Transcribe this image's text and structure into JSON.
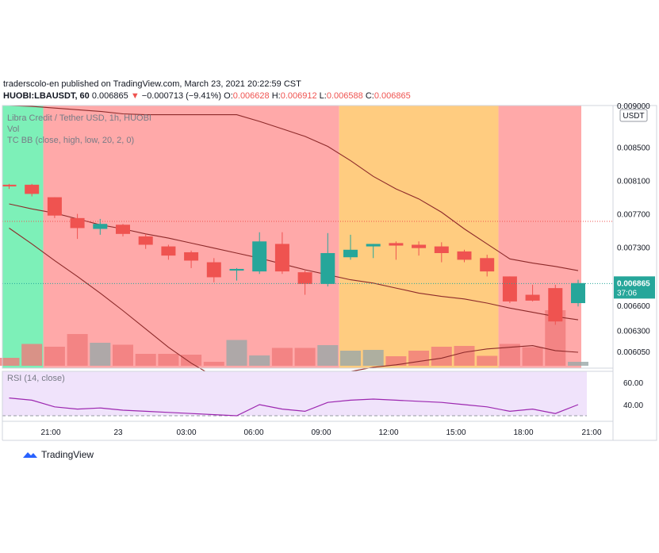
{
  "header": {
    "publish_line": "traderscolo-en published on TradingView.com, March 23, 2021 20:22:59 CST",
    "symbol": "HUOBI:LBAUSDT, 60",
    "last": "0.006865",
    "change_arrow": "▼",
    "change": "−0.000713 (−9.41%)",
    "o_label": "O:",
    "o_val": "0.006628",
    "h_label": "H:",
    "h_val": "0.006912",
    "l_label": "L:",
    "l_val": "0.006588",
    "c_label": "C:",
    "c_val": "0.006865"
  },
  "legend": {
    "title": "Libra Credit / Tether USD, 1h, HUOBI",
    "vol": "Vol",
    "bb": "TC BB (close, high, low, 20, 2, 0)",
    "rsi": "RSI (14, close)"
  },
  "price_axis": {
    "currency_badge": "USDT",
    "last_price_badge": "0.006865",
    "countdown_badge": "37:06"
  },
  "watermark": "TradingView",
  "colors": {
    "up": "#26a69a",
    "down": "#ef5350",
    "bg_green": "#7df0b8",
    "bg_red": "#ffa9a9",
    "bg_orange": "#ffcc80",
    "bb_line": "#8d2a2a",
    "rsi_line": "#9c27b0",
    "rsi_band": "#f0e3fb"
  },
  "chart_data": {
    "type": "candlestick",
    "title": "Libra Credit / Tether USD, 1h, HUOBI",
    "ylim": [
      0.00585,
      0.009
    ],
    "y_ticks": [
      "0.009000",
      "0.008500",
      "0.008100",
      "0.007700",
      "0.007300",
      "0.006600",
      "0.006300",
      "0.006050"
    ],
    "x_ticks": [
      "21:00",
      "23",
      "03:00",
      "06:00",
      "09:00",
      "12:00",
      "15:00",
      "18:00",
      "21:00"
    ],
    "candles": [
      {
        "o": 0.00805,
        "h": 0.00806,
        "l": 0.008,
        "c": 0.00803
      },
      {
        "o": 0.00805,
        "h": 0.00806,
        "l": 0.00791,
        "c": 0.00794
      },
      {
        "o": 0.0079,
        "h": 0.0079,
        "l": 0.00765,
        "c": 0.00768
      },
      {
        "o": 0.00765,
        "h": 0.0077,
        "l": 0.0074,
        "c": 0.00753
      },
      {
        "o": 0.00752,
        "h": 0.00764,
        "l": 0.00745,
        "c": 0.00758
      },
      {
        "o": 0.00757,
        "h": 0.00758,
        "l": 0.00743,
        "c": 0.00746
      },
      {
        "o": 0.00743,
        "h": 0.00746,
        "l": 0.00728,
        "c": 0.00733
      },
      {
        "o": 0.00731,
        "h": 0.00733,
        "l": 0.00715,
        "c": 0.0072
      },
      {
        "o": 0.00724,
        "h": 0.00726,
        "l": 0.00705,
        "c": 0.00714
      },
      {
        "o": 0.00712,
        "h": 0.00717,
        "l": 0.00688,
        "c": 0.00694
      },
      {
        "o": 0.00702,
        "h": 0.00705,
        "l": 0.0069,
        "c": 0.00704
      },
      {
        "o": 0.00701,
        "h": 0.00748,
        "l": 0.00698,
        "c": 0.00737
      },
      {
        "o": 0.00734,
        "h": 0.00748,
        "l": 0.00698,
        "c": 0.00701
      },
      {
        "o": 0.007,
        "h": 0.00702,
        "l": 0.00673,
        "c": 0.00686
      },
      {
        "o": 0.00686,
        "h": 0.00747,
        "l": 0.00683,
        "c": 0.00723
      },
      {
        "o": 0.00718,
        "h": 0.00745,
        "l": 0.00715,
        "c": 0.00727
      },
      {
        "o": 0.00731,
        "h": 0.00734,
        "l": 0.00717,
        "c": 0.00734
      },
      {
        "o": 0.00735,
        "h": 0.00737,
        "l": 0.00715,
        "c": 0.00732
      },
      {
        "o": 0.00733,
        "h": 0.00737,
        "l": 0.0072,
        "c": 0.00729
      },
      {
        "o": 0.00731,
        "h": 0.00736,
        "l": 0.00712,
        "c": 0.00723
      },
      {
        "o": 0.00725,
        "h": 0.00727,
        "l": 0.00712,
        "c": 0.00715
      },
      {
        "o": 0.00717,
        "h": 0.00721,
        "l": 0.00695,
        "c": 0.00701
      },
      {
        "o": 0.00695,
        "h": 0.00695,
        "l": 0.00663,
        "c": 0.00665
      },
      {
        "o": 0.00673,
        "h": 0.00685,
        "l": 0.00665,
        "c": 0.00666
      },
      {
        "o": 0.00681,
        "h": 0.00685,
        "l": 0.00637,
        "c": 0.00641
      },
      {
        "o": 0.00663,
        "h": 0.00691,
        "l": 0.00659,
        "c": 0.00687
      }
    ],
    "volume": [
      0.2,
      0.55,
      0.48,
      0.8,
      0.58,
      0.53,
      0.3,
      0.3,
      0.28,
      0.1,
      0.65,
      0.26,
      0.45,
      0.45,
      0.52,
      0.38,
      0.4,
      0.24,
      0.38,
      0.48,
      0.5,
      0.25,
      0.55,
      0.47,
      1.4,
      0.1
    ],
    "bb_upper": [
      0.009,
      0.00899,
      0.00897,
      0.00895,
      0.00893,
      0.0089,
      0.00889,
      0.00889,
      0.00889,
      0.00889,
      0.00889,
      0.00881,
      0.00872,
      0.00863,
      0.00851,
      0.00834,
      0.00815,
      0.008,
      0.00788,
      0.00772,
      0.00752,
      0.00734,
      0.00716,
      0.00711,
      0.00707,
      0.00702
    ],
    "bb_basis": [
      0.00782,
      0.00776,
      0.00771,
      0.00764,
      0.00757,
      0.00752,
      0.00746,
      0.00741,
      0.00735,
      0.00729,
      0.00723,
      0.00717,
      0.0071,
      0.00703,
      0.00697,
      0.00691,
      0.00687,
      0.00681,
      0.00675,
      0.00671,
      0.00668,
      0.00663,
      0.00657,
      0.00652,
      0.00647,
      0.00643
    ],
    "bb_lower": [
      0.00753,
      0.00734,
      0.00714,
      0.00695,
      0.00675,
      0.00654,
      0.00632,
      0.0061,
      0.00591,
      0.00575,
      0.00568,
      0.00571,
      0.00574,
      0.00574,
      0.00577,
      0.00581,
      0.00586,
      0.00589,
      0.00593,
      0.00597,
      0.00604,
      0.00608,
      0.0061,
      0.00612,
      0.00606,
      0.00604
    ],
    "rsi_ylim": [
      25,
      70
    ],
    "rsi_ticks": [
      60,
      40
    ],
    "rsi": [
      46,
      44,
      38,
      36,
      37,
      35,
      34,
      33,
      32,
      31,
      30,
      40,
      36,
      34,
      42,
      44,
      45,
      44,
      43,
      42,
      40,
      38,
      34,
      36,
      32,
      40
    ],
    "background_zones": [
      {
        "from": 0,
        "to": 2,
        "color": "green"
      },
      {
        "from": 2,
        "to": 15,
        "color": "red"
      },
      {
        "from": 15,
        "to": 22,
        "color": "orange"
      },
      {
        "from": 22,
        "to": 26,
        "color": "red"
      }
    ],
    "last_price": 0.006865,
    "red_dotted_level": 0.00761
  }
}
